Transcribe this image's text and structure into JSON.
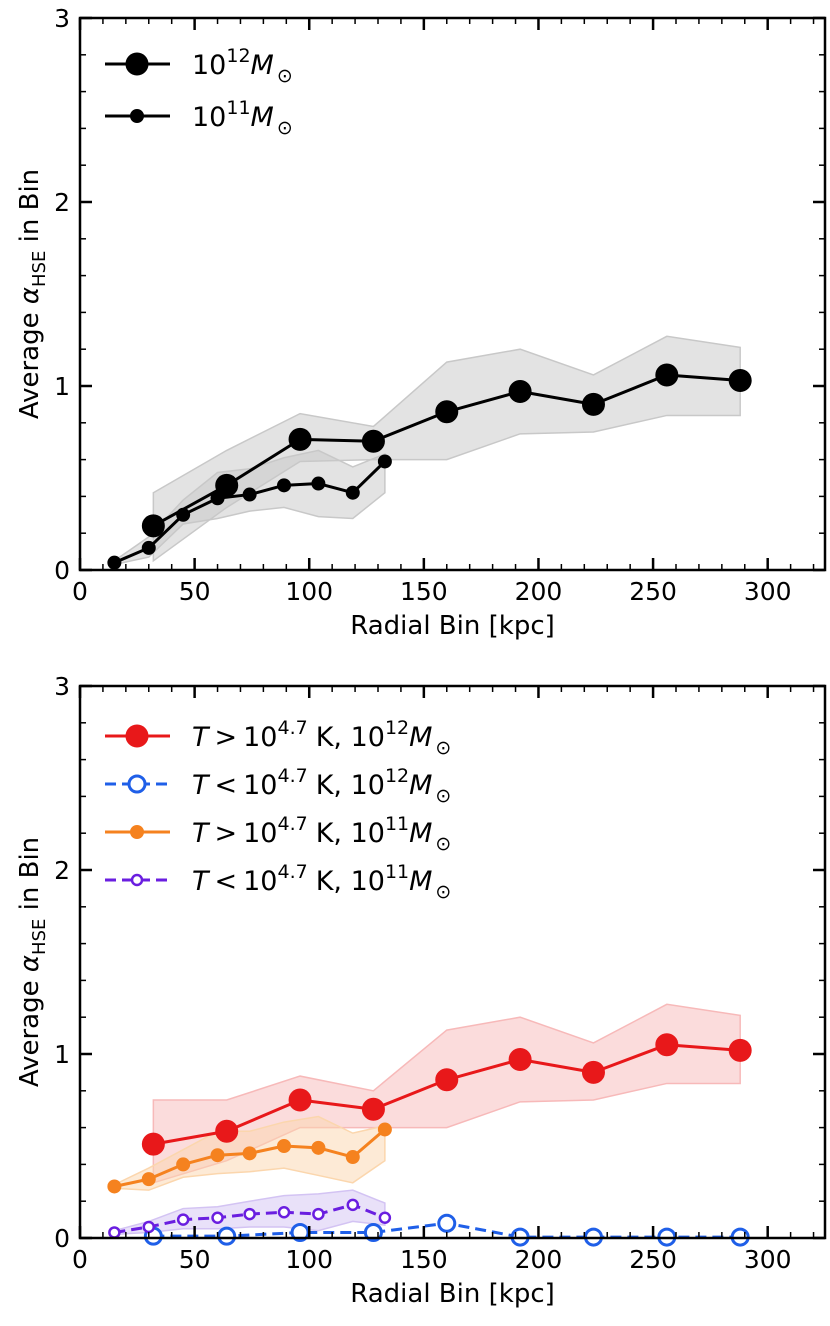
{
  "chart_data": [
    {
      "type": "line",
      "xlabel": "Radial Bin [kpc]",
      "ylabel_prefix": "Average ",
      "ylabel_symbol": "α",
      "ylabel_subscript": "HSE",
      "ylabel_suffix": " in Bin",
      "xlim": [
        0,
        325
      ],
      "ylim": [
        0,
        3
      ],
      "xticks": [
        0,
        50,
        100,
        150,
        200,
        250,
        300
      ],
      "yticks": [
        0,
        1,
        2,
        3
      ],
      "legend_position": "top-left",
      "series": [
        {
          "name": "10¹²M☉",
          "legend": {
            "base": "10",
            "exp": "12",
            "mass": "M",
            "sun": "⊙"
          },
          "color": "#000000",
          "marker": "large-filled",
          "linestyle": "solid",
          "x": [
            32,
            64,
            96,
            128,
            160,
            192,
            224,
            256,
            288
          ],
          "y": [
            0.24,
            0.46,
            0.71,
            0.7,
            0.86,
            0.97,
            0.9,
            1.06,
            1.03
          ],
          "band_upper": [
            0.42,
            0.65,
            0.85,
            0.78,
            1.13,
            1.2,
            1.06,
            1.27,
            1.21
          ],
          "band_lower": [
            0.05,
            0.34,
            0.59,
            0.6,
            0.6,
            0.74,
            0.75,
            0.84,
            0.84
          ],
          "band_color": "#c8c8c8"
        },
        {
          "name": "10¹¹M☉",
          "legend": {
            "base": "10",
            "exp": "11",
            "mass": "M",
            "sun": "⊙"
          },
          "color": "#000000",
          "marker": "small-filled",
          "linestyle": "solid",
          "x": [
            15,
            30,
            45,
            60,
            74,
            89,
            104,
            119,
            133
          ],
          "y": [
            0.04,
            0.12,
            0.3,
            0.39,
            0.41,
            0.46,
            0.47,
            0.42,
            0.59
          ],
          "band_upper": [
            0.05,
            0.18,
            0.38,
            0.53,
            0.55,
            0.61,
            0.65,
            0.56,
            0.63
          ],
          "band_lower": [
            0.03,
            0.07,
            0.25,
            0.28,
            0.32,
            0.34,
            0.29,
            0.28,
            0.42
          ],
          "band_color": "#c8c8c8"
        }
      ]
    },
    {
      "type": "line",
      "xlabel": "Radial Bin [kpc]",
      "ylabel_prefix": "Average ",
      "ylabel_symbol": "α",
      "ylabel_subscript": "HSE",
      "ylabel_suffix": " in Bin",
      "xlim": [
        0,
        325
      ],
      "ylim": [
        0,
        3
      ],
      "xticks": [
        0,
        50,
        100,
        150,
        200,
        250,
        300
      ],
      "yticks": [
        0,
        1,
        2,
        3
      ],
      "legend_position": "top-left",
      "series": [
        {
          "name": "T > 10^4.7 K, 10¹²M☉",
          "legend": {
            "T": "T",
            "op": ">",
            "base": "10",
            "texp": "4.7",
            "unit": "K, 10",
            "exp": "12",
            "mass": "M",
            "sun": "⊙"
          },
          "color": "#e8181a",
          "marker": "large-filled",
          "linestyle": "solid",
          "x": [
            32,
            64,
            96,
            128,
            160,
            192,
            224,
            256,
            288
          ],
          "y": [
            0.51,
            0.58,
            0.75,
            0.7,
            0.86,
            0.97,
            0.9,
            1.05,
            1.02
          ],
          "band_upper": [
            0.75,
            0.75,
            0.88,
            0.8,
            1.13,
            1.2,
            1.06,
            1.27,
            1.21
          ],
          "band_lower": [
            0.3,
            0.42,
            0.6,
            0.6,
            0.6,
            0.74,
            0.75,
            0.84,
            0.84
          ],
          "band_color": "#f7b9b9"
        },
        {
          "name": "T < 10^4.7 K, 10¹²M☉",
          "legend": {
            "T": "T",
            "op": "<",
            "base": "10",
            "texp": "4.7",
            "unit": "K, 10",
            "exp": "12",
            "mass": "M",
            "sun": "⊙"
          },
          "color": "#1f5fe8",
          "marker": "large-open",
          "linestyle": "dashed",
          "x": [
            32,
            64,
            96,
            128,
            160,
            192,
            224,
            256,
            288
          ],
          "y": [
            0.01,
            0.01,
            0.03,
            0.03,
            0.08,
            0.005,
            0.005,
            0.005,
            0.005
          ]
        },
        {
          "name": "T > 10^4.7 K, 10¹¹M☉",
          "legend": {
            "T": "T",
            "op": ">",
            "base": "10",
            "texp": "4.7",
            "unit": "K, 10",
            "exp": "11",
            "mass": "M",
            "sun": "⊙"
          },
          "color": "#f5821f",
          "marker": "small-filled",
          "linestyle": "solid",
          "x": [
            15,
            30,
            45,
            60,
            74,
            89,
            104,
            119,
            133
          ],
          "y": [
            0.28,
            0.32,
            0.4,
            0.45,
            0.46,
            0.5,
            0.49,
            0.44,
            0.59
          ],
          "band_upper": [
            0.29,
            0.38,
            0.48,
            0.58,
            0.58,
            0.63,
            0.66,
            0.57,
            0.61
          ],
          "band_lower": [
            0.27,
            0.26,
            0.33,
            0.35,
            0.36,
            0.38,
            0.34,
            0.3,
            0.42
          ],
          "band_color": "#fbd6ad"
        },
        {
          "name": "T < 10^4.7 K, 10¹¹M☉",
          "legend": {
            "T": "T",
            "op": "<",
            "base": "10",
            "texp": "4.7",
            "unit": "K, 10",
            "exp": "11",
            "mass": "M",
            "sun": "⊙"
          },
          "color": "#6a1ee0",
          "marker": "small-open",
          "linestyle": "dashed",
          "x": [
            15,
            30,
            45,
            60,
            74,
            89,
            104,
            119,
            133
          ],
          "y": [
            0.03,
            0.06,
            0.1,
            0.11,
            0.13,
            0.14,
            0.13,
            0.18,
            0.11
          ],
          "band_upper": [
            0.04,
            0.09,
            0.16,
            0.17,
            0.2,
            0.23,
            0.24,
            0.26,
            0.19
          ],
          "band_lower": [
            0.02,
            0.03,
            0.05,
            0.05,
            0.06,
            0.06,
            0.04,
            0.09,
            0.07
          ],
          "band_color": "#d3c3f3"
        }
      ]
    }
  ]
}
